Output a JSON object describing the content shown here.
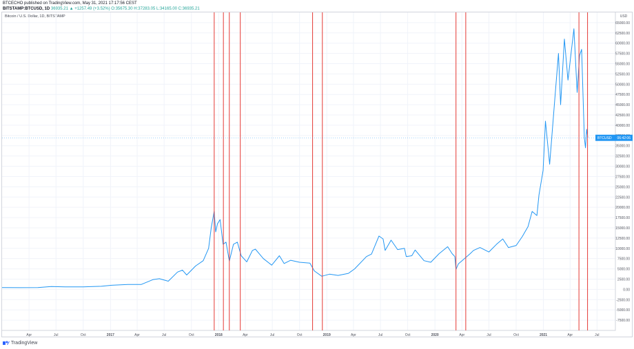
{
  "header": {
    "publisher_line": "BTCECHO published on TradingView.com, May 31, 2021 17:17:56 CEST",
    "symbol": "BITSTAMP:BTCUSD, 1D",
    "ohlc": "36935.21 ▲ +1257.49 (+3.52%) O:35675.30 H:37283.05 L:34165.00 C:36935.21"
  },
  "brand": {
    "label": "TradingView",
    "icon": "tradingview-logo-icon"
  },
  "chart_data": {
    "type": "line",
    "title": "Bitcoin / U.S. Dollar, 1D, BITSTAMP",
    "ylabel": "USD",
    "ylim": [
      -10000,
      67500
    ],
    "yticks": [
      -7500,
      -5000,
      -2500,
      0,
      2500,
      5000,
      7500,
      10000,
      12500,
      15000,
      17500,
      20000,
      22500,
      25000,
      27500,
      30000,
      32500,
      35000,
      37500,
      40000,
      42500,
      45000,
      47500,
      50000,
      52500,
      55000,
      57500,
      60000,
      62500,
      65000
    ],
    "x_label": [
      "Apr",
      "Jul",
      "Oct",
      "2017",
      "Apr",
      "Jul",
      "Oct",
      "2018",
      "Apr",
      "Jul",
      "Oct",
      "2019",
      "Apr",
      "Jul",
      "Oct",
      "2020",
      "Apr",
      "Jul",
      "Oct",
      "2021",
      "Apr",
      "Jul"
    ],
    "x_tick_dates": [
      "2016-04-01",
      "2016-07-01",
      "2016-10-01",
      "2017-01-01",
      "2017-04-01",
      "2017-07-01",
      "2017-10-01",
      "2018-01-01",
      "2018-04-01",
      "2018-07-01",
      "2018-10-01",
      "2019-01-01",
      "2019-04-01",
      "2019-07-01",
      "2019-10-01",
      "2020-01-01",
      "2020-04-01",
      "2020-07-01",
      "2020-10-01",
      "2021-01-01",
      "2021-04-01",
      "2021-07-01"
    ],
    "xlim": [
      "2016-01-01",
      "2021-09-01"
    ],
    "series": [
      {
        "color": "#2196f3",
        "points": [
          [
            "2016-01-01",
            430
          ],
          [
            "2016-03-01",
            420
          ],
          [
            "2016-05-01",
            450
          ],
          [
            "2016-06-15",
            700
          ],
          [
            "2016-08-01",
            600
          ],
          [
            "2016-10-01",
            620
          ],
          [
            "2016-12-01",
            760
          ],
          [
            "2017-01-05",
            1000
          ],
          [
            "2017-03-01",
            1200
          ],
          [
            "2017-04-15",
            1200
          ],
          [
            "2017-05-25",
            2400
          ],
          [
            "2017-06-15",
            2600
          ],
          [
            "2017-07-15",
            2000
          ],
          [
            "2017-08-15",
            4200
          ],
          [
            "2017-09-01",
            4700
          ],
          [
            "2017-09-15",
            3500
          ],
          [
            "2017-10-15",
            5700
          ],
          [
            "2017-11-10",
            7000
          ],
          [
            "2017-11-28",
            10000
          ],
          [
            "2017-12-07",
            15000
          ],
          [
            "2017-12-17",
            19000
          ],
          [
            "2017-12-22",
            14000
          ],
          [
            "2017-12-28",
            16000
          ],
          [
            "2018-01-06",
            17000
          ],
          [
            "2018-01-16",
            11000
          ],
          [
            "2018-01-26",
            11500
          ],
          [
            "2018-02-06",
            6900
          ],
          [
            "2018-02-20",
            11000
          ],
          [
            "2018-03-05",
            11500
          ],
          [
            "2018-03-18",
            8200
          ],
          [
            "2018-04-06",
            6700
          ],
          [
            "2018-04-25",
            9500
          ],
          [
            "2018-05-05",
            9800
          ],
          [
            "2018-06-01",
            7500
          ],
          [
            "2018-06-29",
            5900
          ],
          [
            "2018-07-25",
            8200
          ],
          [
            "2018-08-10",
            6300
          ],
          [
            "2018-09-01",
            7100
          ],
          [
            "2018-10-01",
            6600
          ],
          [
            "2018-11-05",
            6400
          ],
          [
            "2018-11-20",
            4500
          ],
          [
            "2018-12-15",
            3200
          ],
          [
            "2019-01-10",
            3700
          ],
          [
            "2019-02-08",
            3400
          ],
          [
            "2019-03-15",
            3900
          ],
          [
            "2019-04-05",
            5000
          ],
          [
            "2019-05-15",
            8000
          ],
          [
            "2019-06-01",
            8600
          ],
          [
            "2019-06-26",
            13000
          ],
          [
            "2019-07-10",
            12300
          ],
          [
            "2019-07-17",
            9500
          ],
          [
            "2019-08-06",
            12000
          ],
          [
            "2019-08-28",
            9700
          ],
          [
            "2019-09-20",
            10000
          ],
          [
            "2019-09-26",
            8000
          ],
          [
            "2019-10-15",
            8200
          ],
          [
            "2019-10-26",
            9600
          ],
          [
            "2019-11-25",
            7000
          ],
          [
            "2019-12-18",
            6600
          ],
          [
            "2020-01-15",
            8700
          ],
          [
            "2020-02-13",
            10400
          ],
          [
            "2020-02-28",
            8700
          ],
          [
            "2020-03-08",
            8000
          ],
          [
            "2020-03-12",
            4900
          ],
          [
            "2020-03-20",
            6200
          ],
          [
            "2020-04-29",
            8700
          ],
          [
            "2020-05-10",
            9500
          ],
          [
            "2020-06-01",
            10200
          ],
          [
            "2020-07-01",
            9100
          ],
          [
            "2020-07-27",
            11000
          ],
          [
            "2020-08-17",
            12300
          ],
          [
            "2020-09-05",
            10200
          ],
          [
            "2020-10-01",
            10700
          ],
          [
            "2020-10-22",
            12900
          ],
          [
            "2020-11-10",
            15300
          ],
          [
            "2020-11-24",
            19000
          ],
          [
            "2020-12-10",
            18000
          ],
          [
            "2020-12-17",
            23000
          ],
          [
            "2020-12-31",
            29000
          ],
          [
            "2021-01-08",
            41000
          ],
          [
            "2021-01-22",
            30500
          ],
          [
            "2021-02-08",
            46000
          ],
          [
            "2021-02-21",
            57500
          ],
          [
            "2021-02-28",
            45000
          ],
          [
            "2021-03-13",
            61000
          ],
          [
            "2021-03-25",
            51000
          ],
          [
            "2021-04-14",
            63500
          ],
          [
            "2021-04-25",
            48000
          ],
          [
            "2021-05-03",
            57000
          ],
          [
            "2021-05-10",
            58500
          ],
          [
            "2021-05-19",
            37000
          ],
          [
            "2021-05-23",
            34500
          ],
          [
            "2021-05-27",
            39000
          ],
          [
            "2021-05-31",
            36935
          ]
        ]
      }
    ],
    "vertical_markers": {
      "color": "#e53935",
      "dates": [
        "2017-12-17",
        "2018-01-17",
        "2018-02-06",
        "2018-03-15",
        "2018-11-14",
        "2018-12-17",
        "2020-03-12",
        "2020-04-14",
        "2021-05-01",
        "2021-05-30"
      ]
    },
    "last_price": {
      "label": "BTCUSD",
      "countdown": "06:42:06",
      "value": 36935,
      "color": "#2196f3"
    },
    "grid": true
  }
}
